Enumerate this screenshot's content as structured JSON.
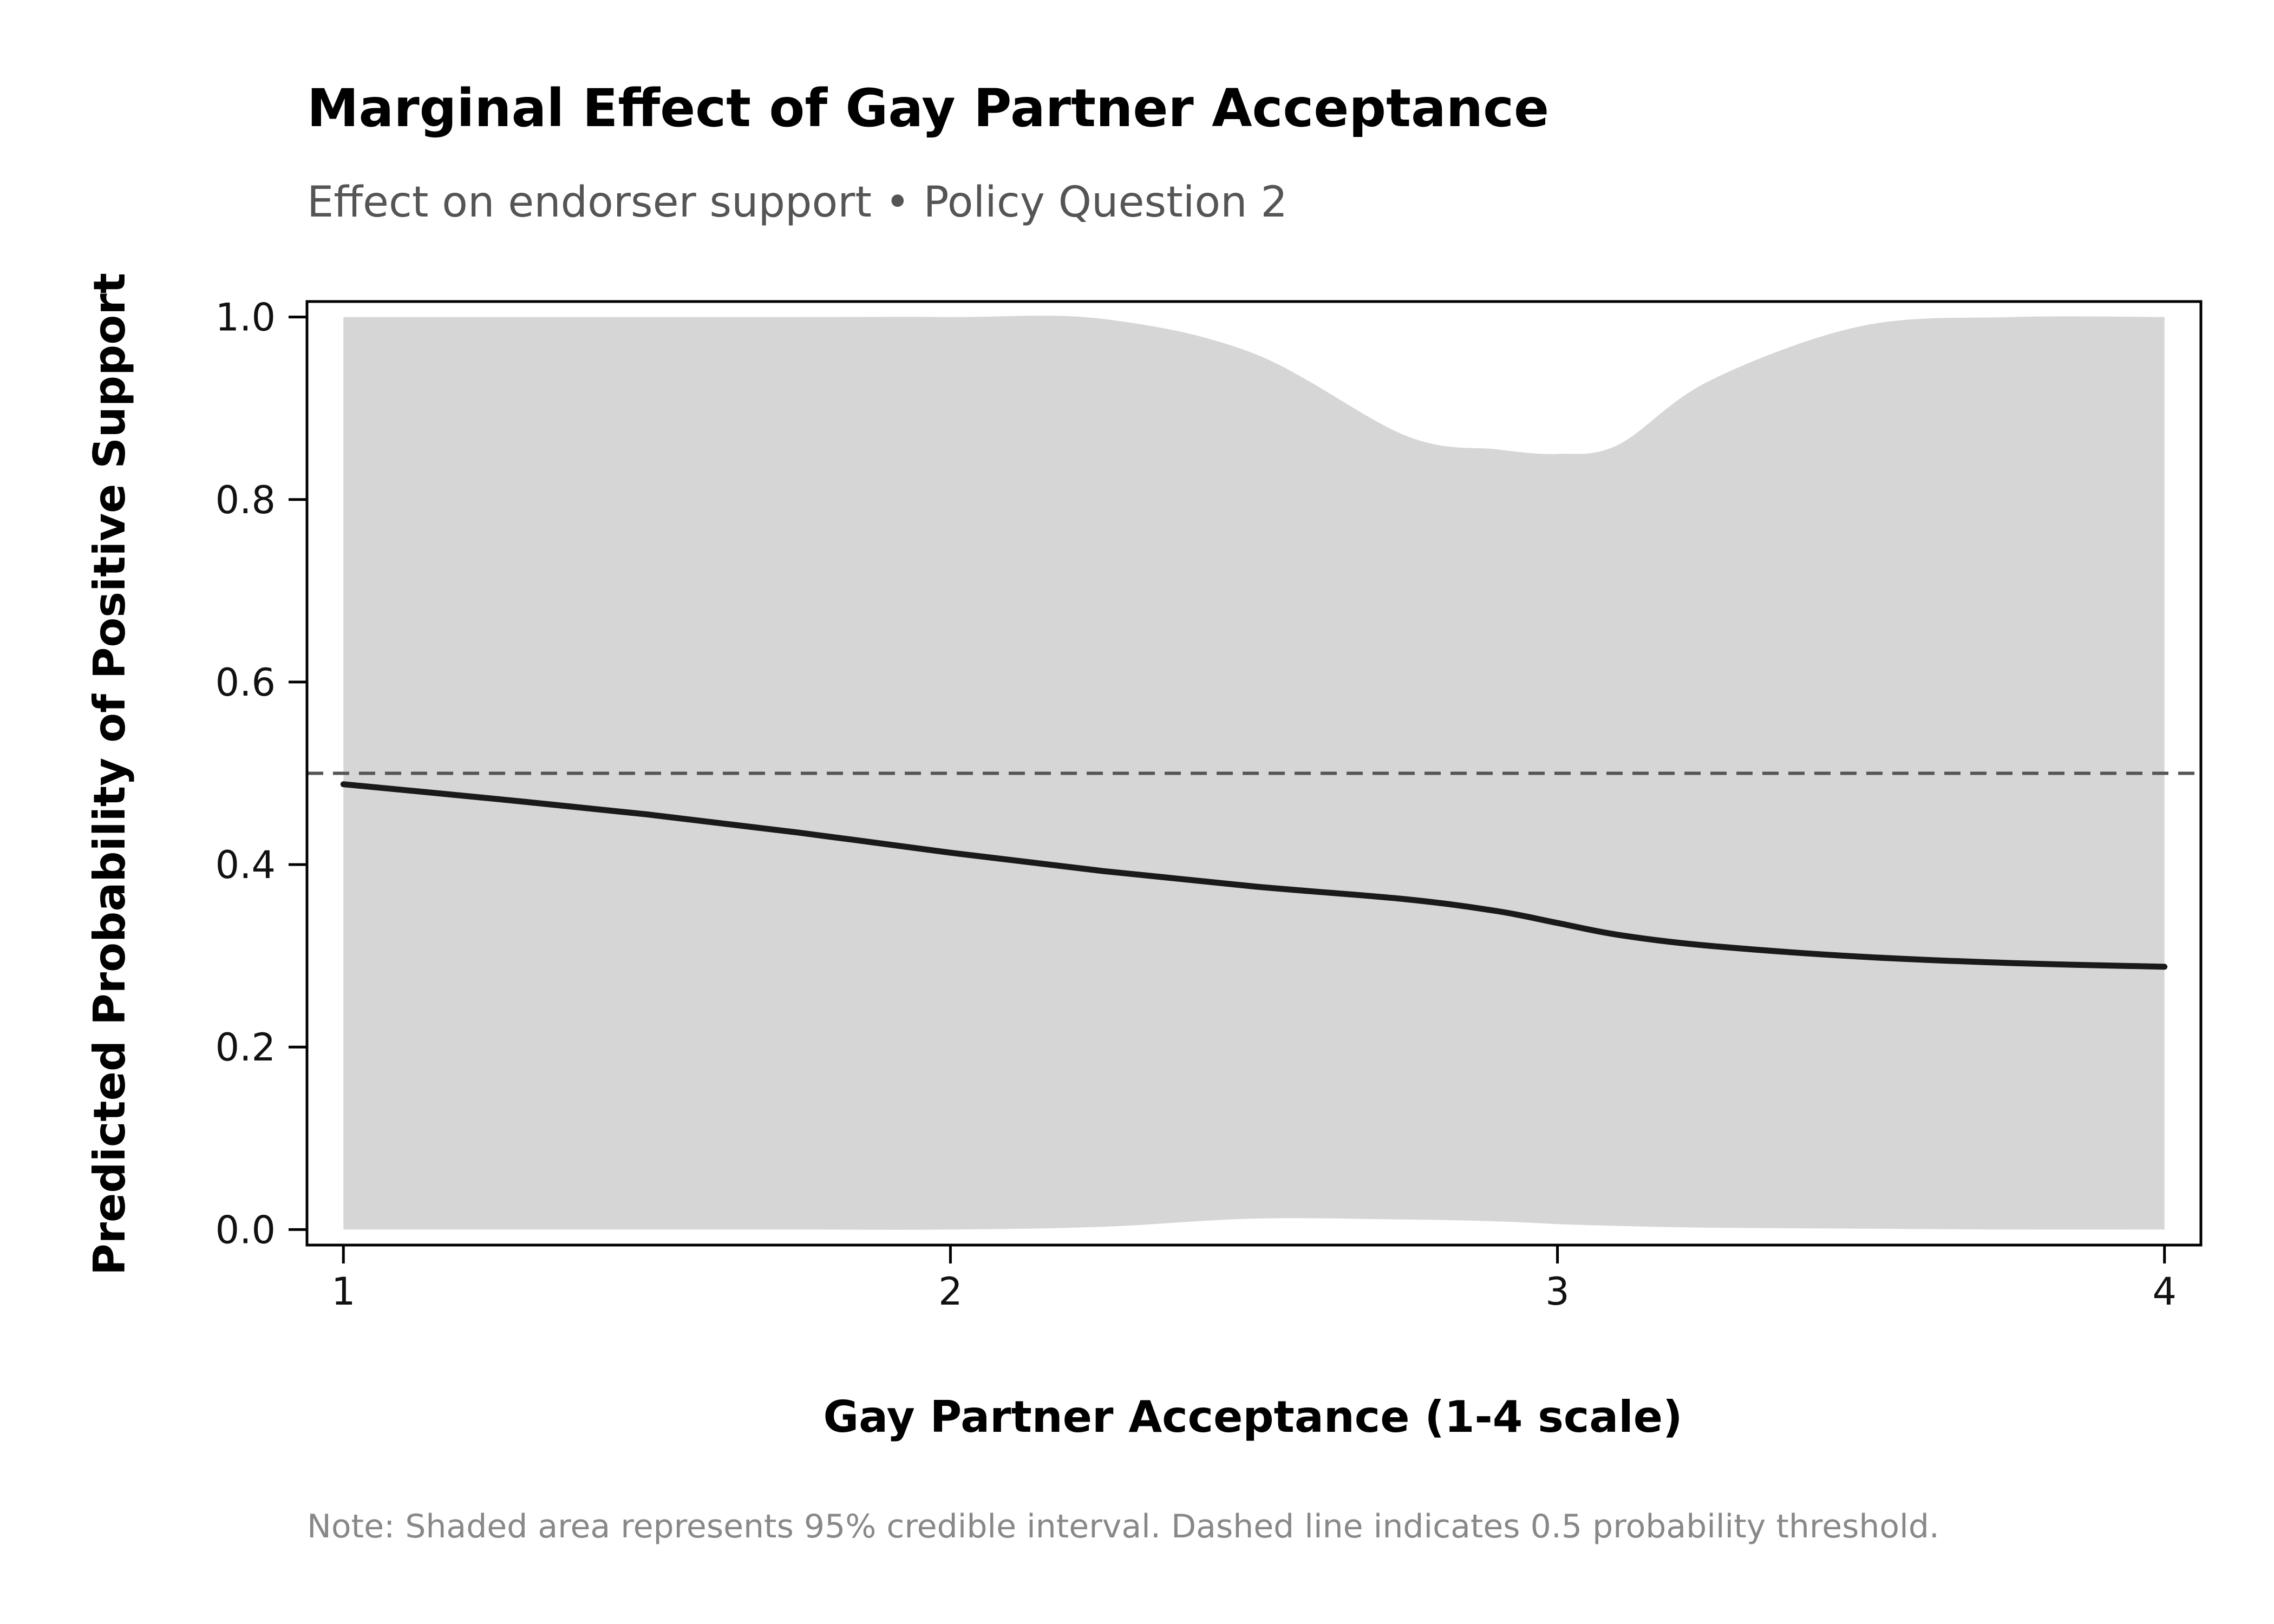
{
  "chart_data": {
    "type": "line",
    "title": "Marginal Effect of Gay Partner Acceptance",
    "subtitle": "Effect on endorser support • Policy Question 2",
    "xlabel": "Gay Partner Acceptance (1-4 scale)",
    "ylabel": "Predicted Probability of Positive Support",
    "note": "Note: Shaded area represents 95% credible interval. Dashed line indicates 0.5 probability threshold.",
    "xlim": [
      0.94,
      4.06
    ],
    "ylim": [
      -0.017,
      1.017
    ],
    "x_ticks": [
      1,
      2,
      3,
      4
    ],
    "x_tick_labels": [
      "1",
      "2",
      "3",
      "4"
    ],
    "y_ticks": [
      0.0,
      0.2,
      0.4,
      0.6,
      0.8,
      1.0
    ],
    "y_tick_labels": [
      "0.0",
      "0.2",
      "0.4",
      "0.6",
      "0.8",
      "1.0"
    ],
    "threshold": 0.5,
    "grid": false,
    "colors": {
      "line": "#1a1a1a",
      "band": "#d6d6d6",
      "threshold": "#555555",
      "frame": "#000000"
    },
    "series": [
      {
        "x": [
          1.0,
          1.25,
          1.5,
          1.75,
          2.0,
          2.25,
          2.5,
          2.75,
          2.9,
          3.0,
          3.1,
          3.25,
          3.5,
          3.75,
          4.0
        ],
        "mean": [
          0.488,
          0.472,
          0.455,
          0.435,
          0.413,
          0.393,
          0.376,
          0.362,
          0.349,
          0.336,
          0.323,
          0.311,
          0.299,
          0.292,
          0.288
        ],
        "lower": [
          0.0,
          0.0,
          0.0,
          0.0,
          0.0,
          0.003,
          0.012,
          0.011,
          0.009,
          0.006,
          0.004,
          0.002,
          0.001,
          0.0,
          0.0
        ],
        "upper": [
          1.0,
          1.0,
          1.0,
          1.0,
          1.0,
          0.998,
          0.96,
          0.87,
          0.855,
          0.85,
          0.86,
          0.93,
          0.99,
          1.0,
          1.0
        ]
      }
    ]
  }
}
